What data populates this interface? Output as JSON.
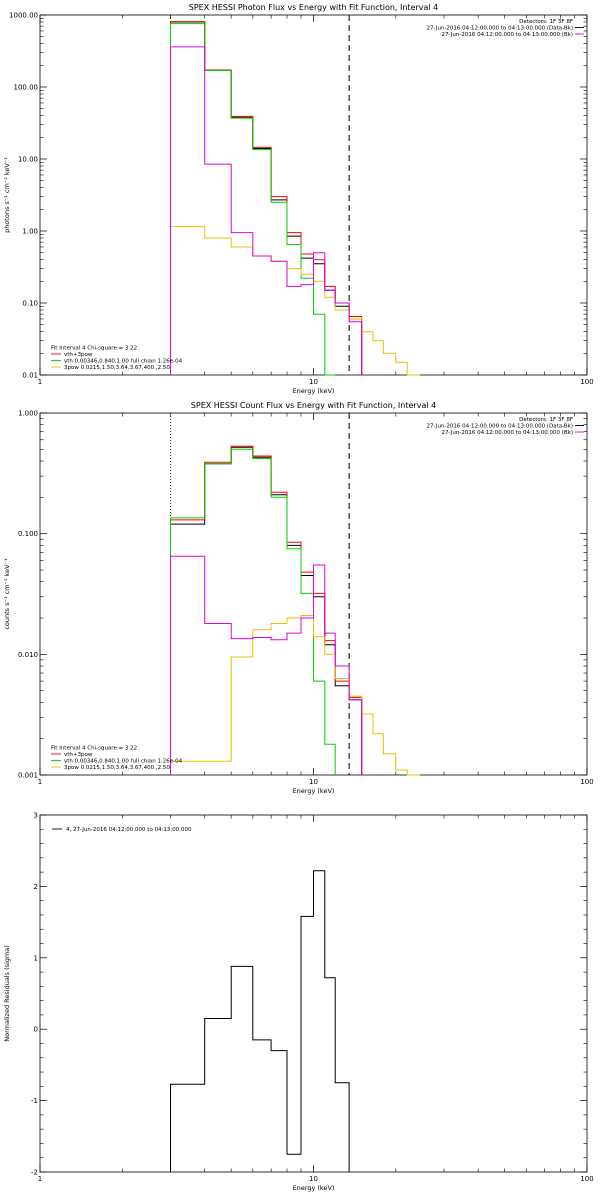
{
  "chart_data": [
    {
      "type": "line",
      "title": "SPEX HESSI Photon Flux vs Energy with Fit Function, Interval 4",
      "xlabel": "Energy (keV)",
      "ylabel": "photons s⁻¹ cm⁻² keV⁻¹",
      "xscale": "log",
      "yscale": "log",
      "xlim": [
        1,
        100
      ],
      "ylim": [
        0.01,
        1000
      ],
      "x_ticks": [
        "1",
        "10",
        "100"
      ],
      "y_ticks": [
        "0.01",
        "0.10",
        "1.00",
        "10.00",
        "100.00",
        "1000.00"
      ],
      "header_lines": [
        "Detectors: 1F 3F 8F",
        "27-Jun-2016 04:12:00.000 to 04:13:00.000 (Data-Bk)",
        "27-Jun-2016 04:12:00.000 to 04:13:00.000 (Bk)"
      ],
      "legend_lines": [
        "Fit Interval 4   Chi-square = 3.22",
        "vth+3pow",
        "vth 0.00346,0.840,1.00  full chian 1.26e-04",
        "3pow 0.0215,1.50,3.64,3.67,400.,2.50"
      ],
      "vlines": [
        {
          "x": 3,
          "style": "dotted",
          "color": "#000000"
        },
        {
          "x": 13.5,
          "style": "dashed",
          "color": "#000000"
        }
      ],
      "edges": [
        3,
        4,
        5,
        6,
        7,
        8,
        9,
        10,
        11,
        12,
        13.5,
        15,
        16.5,
        18,
        20,
        22,
        24.5
      ],
      "series": [
        {
          "role": "data",
          "color": "#000000",
          "values": [
            800,
            170,
            38,
            14,
            2.7,
            0.85,
            0.42,
            0.35,
            0.15,
            0.09,
            0.06
          ]
        },
        {
          "role": "fit",
          "color": "#ff0000",
          "values": [
            810,
            172,
            39,
            14.5,
            3.0,
            0.95,
            0.48,
            0.4,
            0.17,
            0.1,
            0.065
          ]
        },
        {
          "role": "thermal",
          "color": "#00d000",
          "values": [
            760,
            170,
            37,
            13.5,
            2.5,
            0.65,
            0.22,
            0.07,
            0.01
          ]
        },
        {
          "role": "power-law",
          "color": "#e8c000",
          "values": [
            1.15,
            0.8,
            0.6,
            0.45,
            0.38,
            0.3,
            0.25,
            0.2,
            0.12,
            0.08,
            0.06,
            0.04,
            0.03,
            0.02,
            0.015,
            0.01
          ]
        },
        {
          "role": "background",
          "color": "#e000e0",
          "values": [
            360,
            8.5,
            0.95,
            0.45,
            0.38,
            0.17,
            0.18,
            0.5,
            0.15,
            0.1,
            0.055
          ]
        }
      ]
    },
    {
      "type": "line",
      "title": "SPEX HESSI Count Flux vs Energy with Fit Function, Interval 4",
      "xlabel": "Energy (keV)",
      "ylabel": "counts s⁻¹ cm⁻² keV⁻¹",
      "xscale": "log",
      "yscale": "log",
      "xlim": [
        1,
        100
      ],
      "ylim": [
        0.001,
        1
      ],
      "x_ticks": [
        "1",
        "10",
        "100"
      ],
      "y_ticks": [
        "0.001",
        "0.010",
        "0.100",
        "1.000"
      ],
      "header_lines": [
        "Detectors: 1F 3F 8F",
        "27-Jun-2016 04:12:00.000 to 04:13:00.000 (Data-Bk)",
        "27-Jun-2016 04:12:00.000 to 04:13:00.000 (Bk)"
      ],
      "legend_lines": [
        "Fit Interval 4   Chi-square = 3.22",
        "vth+3pow",
        "vth 0.00346,0.840,1.00  full chian 1.26e-04",
        "3pow 0.0215,1.50,3.64,3.67,400.,2.50"
      ],
      "vlines": [
        {
          "x": 3,
          "style": "dotted",
          "color": "#000000"
        },
        {
          "x": 13.5,
          "style": "dashed",
          "color": "#000000"
        }
      ],
      "edges": [
        3,
        4,
        5,
        6,
        7,
        8,
        9,
        10,
        11,
        12,
        13.5,
        15,
        16.5,
        18,
        20,
        22,
        24.5
      ],
      "series": [
        {
          "role": "data",
          "color": "#000000",
          "values": [
            0.12,
            0.38,
            0.52,
            0.43,
            0.21,
            0.08,
            0.045,
            0.03,
            0.012,
            0.0055,
            0.0042
          ]
        },
        {
          "role": "fit",
          "color": "#ff0000",
          "values": [
            0.13,
            0.39,
            0.53,
            0.44,
            0.22,
            0.085,
            0.048,
            0.032,
            0.013,
            0.006,
            0.0044
          ]
        },
        {
          "role": "thermal",
          "color": "#00d000",
          "values": [
            0.135,
            0.38,
            0.5,
            0.42,
            0.2,
            0.075,
            0.032,
            0.006,
            0.0018
          ]
        },
        {
          "role": "power-law",
          "color": "#e8c000",
          "values": [
            0.0013,
            0.0013,
            0.0095,
            0.016,
            0.018,
            0.02,
            0.021,
            0.014,
            0.01,
            0.0063,
            0.0045,
            0.0032,
            0.0022,
            0.0015,
            0.0011,
            0.001
          ]
        },
        {
          "role": "background",
          "color": "#e000e0",
          "values": [
            0.065,
            0.018,
            0.0135,
            0.0138,
            0.0132,
            0.015,
            0.02,
            0.055,
            0.015,
            0.008,
            0.0042
          ]
        }
      ]
    },
    {
      "type": "line",
      "title": "",
      "xlabel": "Energy (keV)",
      "ylabel": "Normalized Residuals (sigma)",
      "xscale": "log",
      "yscale": "linear",
      "xlim": [
        1,
        100
      ],
      "ylim": [
        -2,
        3
      ],
      "x_ticks": [
        "1",
        "10",
        "100"
      ],
      "y_ticks": [
        "-2",
        "-1",
        "0",
        "1",
        "2",
        "3"
      ],
      "legend_lines": [
        "4, 27-Jun-2016 04:12:00.000 to 04:13:00.000"
      ],
      "edges": [
        3,
        4,
        5,
        6,
        7,
        8,
        9,
        10,
        11,
        12,
        13.5
      ],
      "series": [
        {
          "role": "residuals",
          "color": "#000000",
          "values": [
            -0.77,
            0.15,
            0.88,
            -0.15,
            -0.3,
            -1.75,
            1.58,
            2.22,
            0.72,
            -0.75
          ]
        }
      ]
    }
  ]
}
